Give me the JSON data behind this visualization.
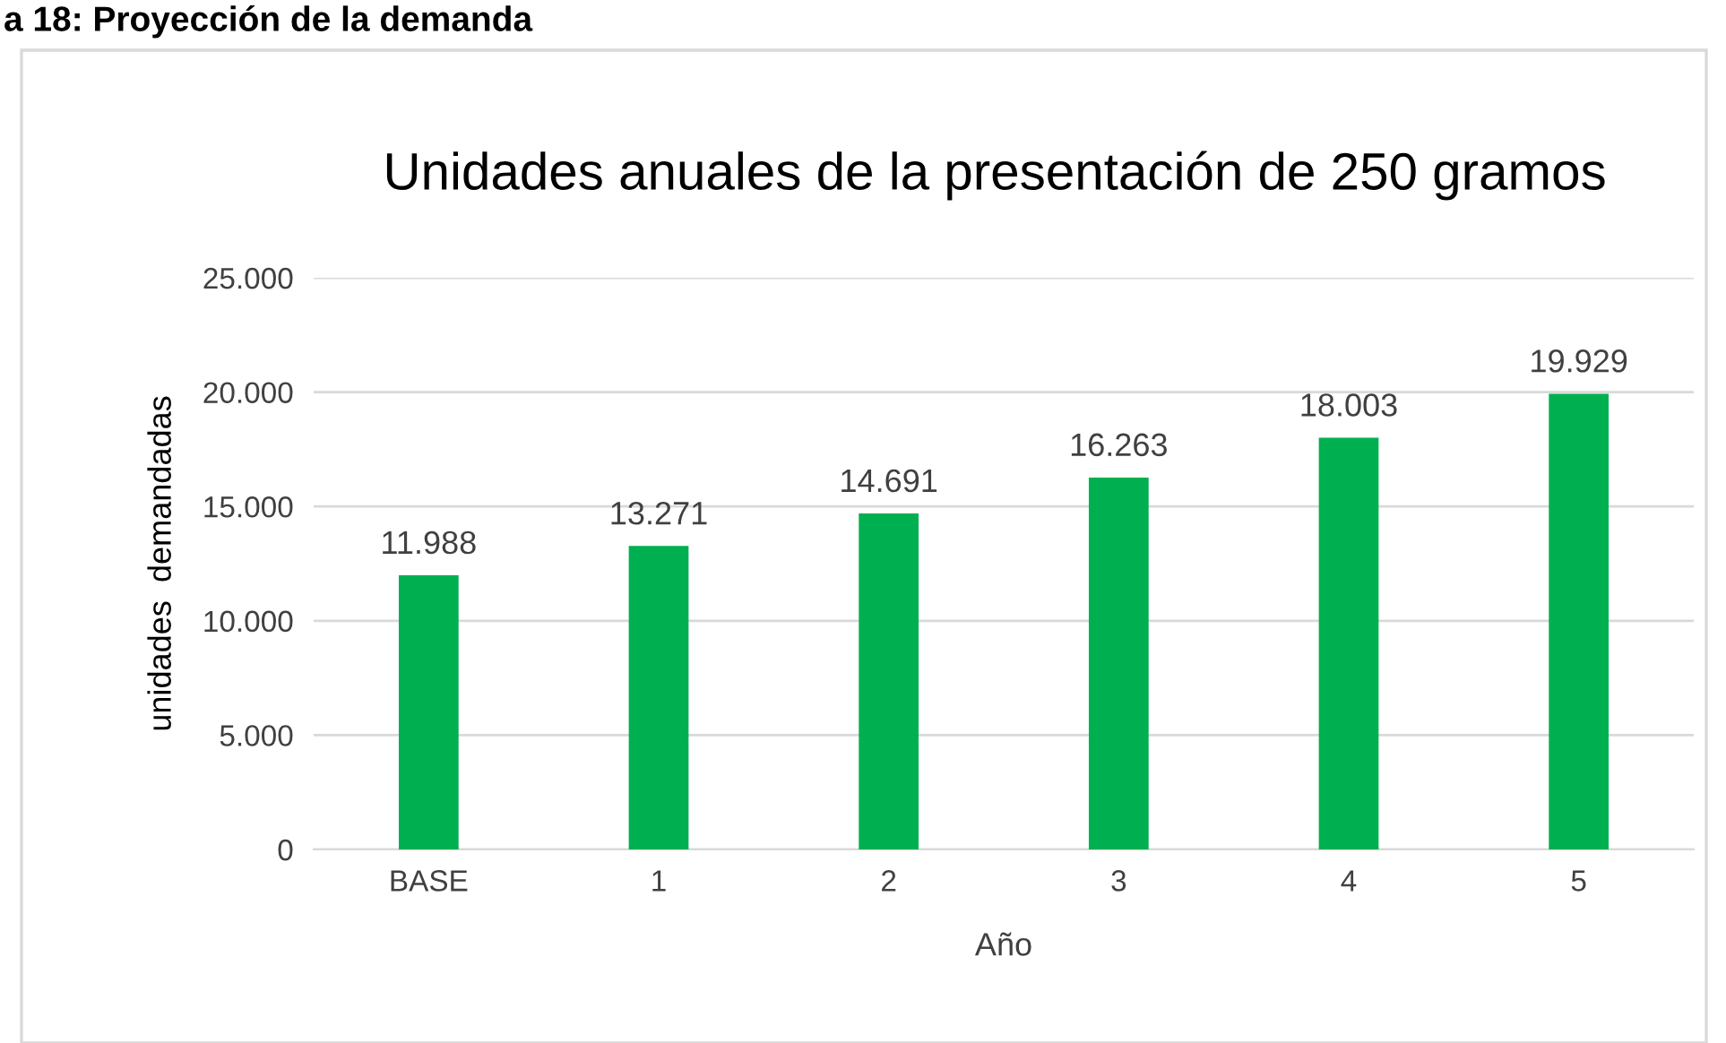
{
  "chart_data": {
    "type": "bar",
    "title": "Unidades anuales de la presentación de 250 gramos",
    "subtitle": "a 18: Proyección de la demanda",
    "xlabel": "Año",
    "ylabel": "unidades  demandadas",
    "categories": [
      "BASE",
      "1",
      "2",
      "3",
      "4",
      "5"
    ],
    "values": [
      11988,
      13271,
      14691,
      16263,
      18003,
      19929
    ],
    "value_labels": [
      "11.988",
      "13.271",
      "14.691",
      "16.263",
      "18.003",
      "19.929"
    ],
    "color": "#00b050",
    "ylim": [
      0,
      25000
    ],
    "yticks": [
      0,
      {
        "value": 5000,
        "label": "5.000"
      },
      {
        "value": 10000,
        "label": "10.000"
      },
      {
        "value": 15000,
        "label": "15.000"
      },
      {
        "value": 20000,
        "label": "20.000"
      },
      {
        "value": 25000,
        "label": "25.000"
      }
    ],
    "grid": "y",
    "legend": false
  }
}
